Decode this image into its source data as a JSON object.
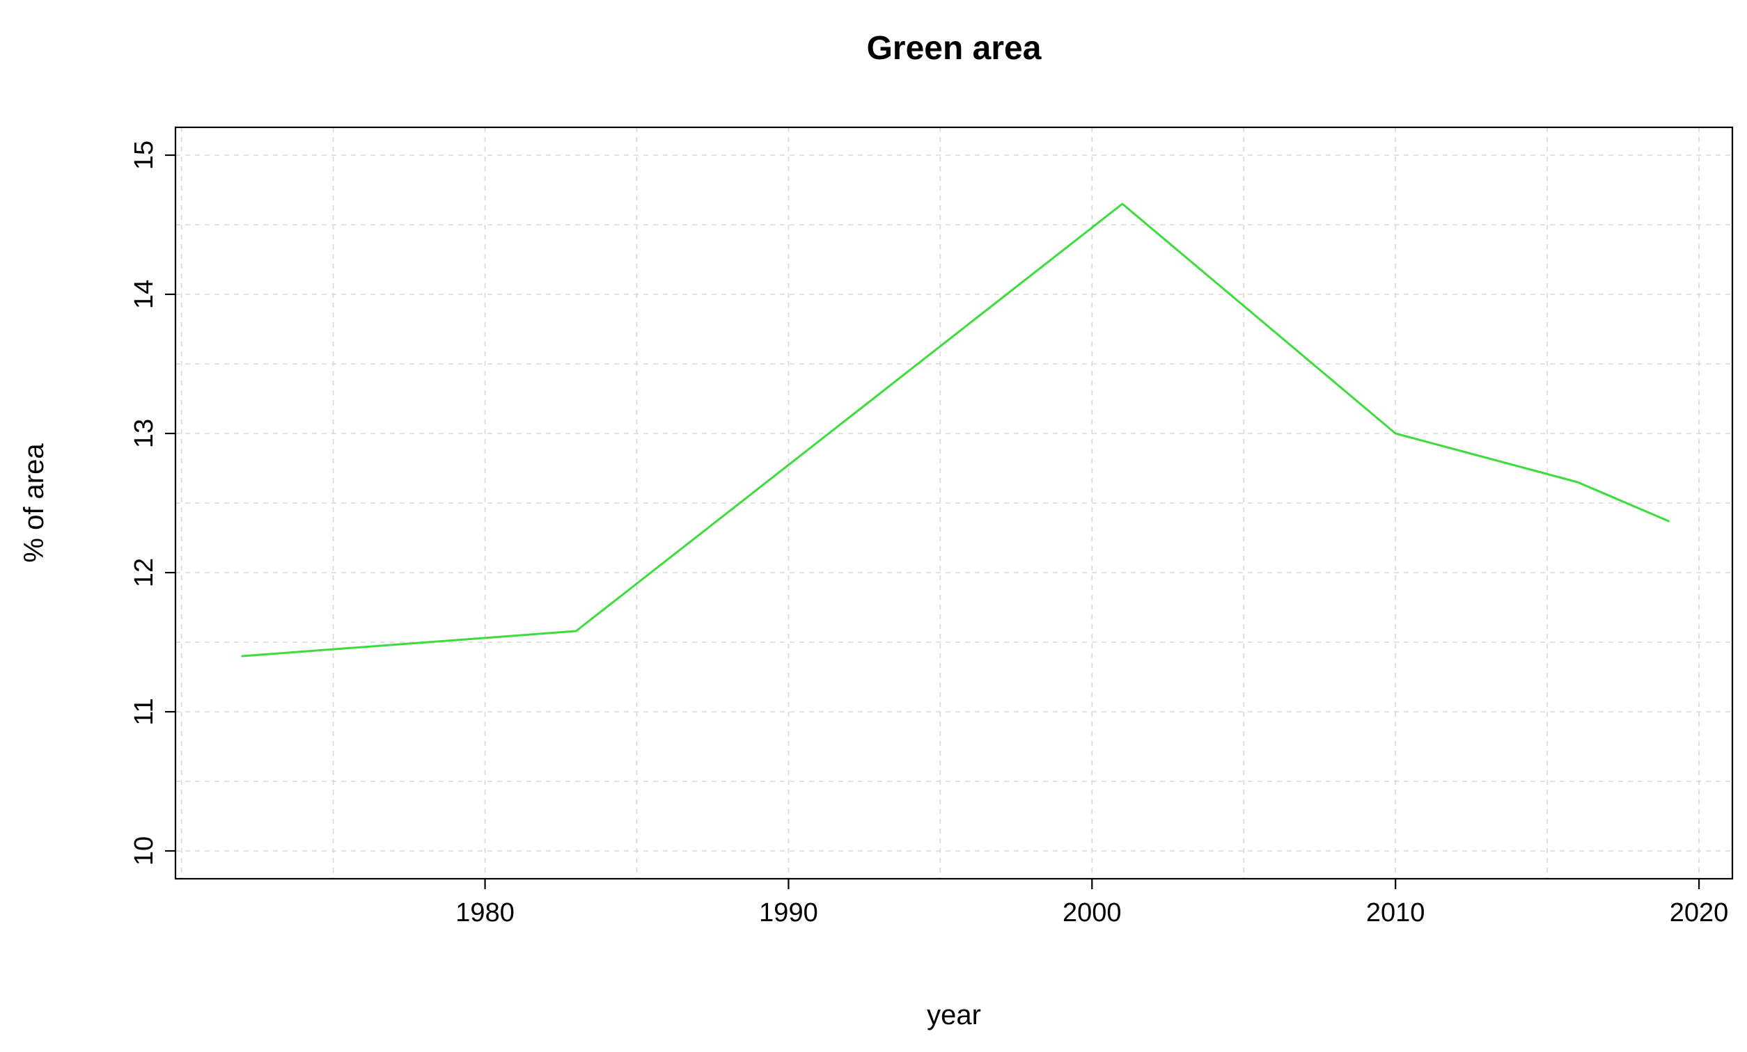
{
  "chart_data": {
    "type": "line",
    "title": "Green area",
    "xlabel": "year",
    "ylabel": "% of area",
    "x": [
      1972,
      1983,
      2001,
      2010,
      2016,
      2019
    ],
    "y": [
      11.4,
      11.58,
      14.65,
      13.0,
      12.65,
      12.37
    ],
    "xlim": [
      1969.8,
      2021.1
    ],
    "ylim": [
      9.8,
      15.2
    ],
    "x_ticks": [
      1980,
      1990,
      2000,
      2010,
      2020
    ],
    "y_ticks": [
      10,
      11,
      12,
      13,
      14,
      15
    ],
    "grid": {
      "x_step": 5,
      "y_step": 0.5,
      "style": "dashed",
      "color": "#d8d8d8"
    },
    "line_color": "#3ddc3d",
    "frame_color": "#000000",
    "legend": "none"
  }
}
